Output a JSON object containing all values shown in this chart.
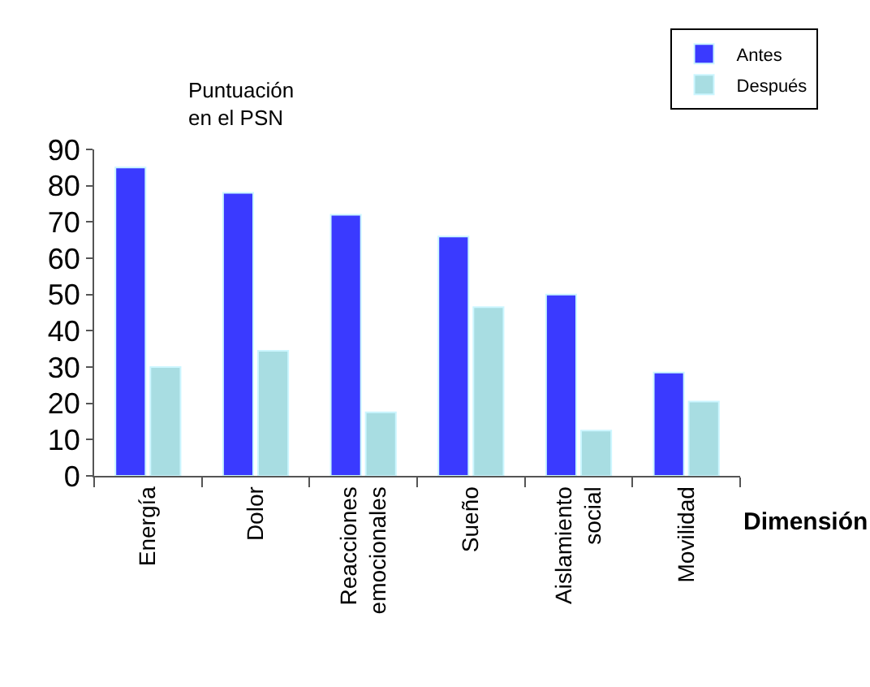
{
  "chart_data": {
    "type": "bar",
    "ylabel": "Puntuación\nen el PSN",
    "xlabel": "Dimensión",
    "categories": [
      "Energía",
      "Dolor",
      "Reacciones emocionales",
      "Sueño",
      "Aislamiento social",
      "Movilidad"
    ],
    "series": [
      {
        "name": "Antes",
        "color": "#3a3aff",
        "values": [
          85,
          78,
          72,
          66,
          50,
          28.5
        ]
      },
      {
        "name": "Después",
        "color": "#a8dde2",
        "values": [
          30,
          34.5,
          17.5,
          46.5,
          12.5,
          20.5
        ]
      }
    ],
    "ylim": [
      0,
      90
    ],
    "yticks": [
      0,
      10,
      20,
      30,
      40,
      50,
      60,
      70,
      80,
      90
    ],
    "legend": "top right"
  }
}
